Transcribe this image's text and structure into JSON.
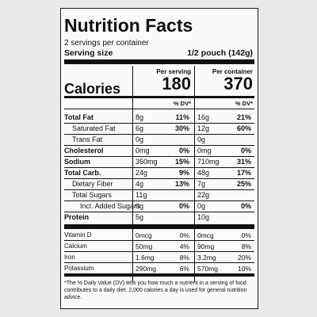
{
  "title": "Nutrition Facts",
  "servings": "2 servings per container",
  "serving_size": {
    "label": "Serving size",
    "value": "1/2 pouch (142g)"
  },
  "columns": [
    "Per serving",
    "Per container"
  ],
  "calories": {
    "label": "Calories",
    "values": [
      "180",
      "370"
    ]
  },
  "dv_header": [
    "% DV*",
    "% DV*"
  ],
  "rows": [
    {
      "name": "Total Fat",
      "bold": true,
      "indent": 0,
      "values": [
        "8g",
        "11%",
        "16g",
        "21%"
      ]
    },
    {
      "name": "Saturated Fat",
      "bold": false,
      "indent": 1,
      "values": [
        "6g",
        "30%",
        "12g",
        "60%"
      ]
    },
    {
      "name": "Trans Fat",
      "bold": false,
      "indent": 1,
      "values": [
        "0g",
        null,
        "0g",
        null
      ]
    },
    {
      "name": "Cholesterol",
      "bold": true,
      "indent": 0,
      "values": [
        "0mg",
        "0%",
        "0mg",
        "0%"
      ]
    },
    {
      "name": "Sodium",
      "bold": true,
      "indent": 0,
      "values": [
        "350mg",
        "15%",
        "710mg",
        "31%"
      ]
    },
    {
      "name": "Total Carb.",
      "bold": true,
      "indent": 0,
      "values": [
        "24g",
        "9%",
        "48g",
        "17%"
      ]
    },
    {
      "name": "Dietary Fiber",
      "bold": false,
      "indent": 1,
      "values": [
        "4g",
        "13%",
        "7g",
        "25%"
      ]
    },
    {
      "name": "Total Sugars",
      "bold": false,
      "indent": 1,
      "values": [
        "11g",
        null,
        "22g",
        null
      ]
    },
    {
      "name": "Incl. Added Sugars",
      "bold": false,
      "indent": 2,
      "values": [
        "0g",
        "0%",
        "0g",
        "0%"
      ]
    },
    {
      "name": "Protein",
      "bold": true,
      "indent": 0,
      "values": [
        "5g",
        null,
        "10g",
        null
      ]
    }
  ],
  "vitamins": [
    {
      "name": "Vitamin D",
      "values": [
        "0mcg",
        "0%",
        "0mcg",
        "0%"
      ]
    },
    {
      "name": "Calcium",
      "values": [
        "50mg",
        "4%",
        "90mg",
        "8%"
      ]
    },
    {
      "name": "Iron",
      "values": [
        "1.6mg",
        "8%",
        "3.2mg",
        "20%"
      ]
    },
    {
      "name": "Potassium",
      "values": [
        "290mg",
        "6%",
        "570mg",
        "10%"
      ]
    }
  ],
  "footnote": "*The % Daily Value (DV) tells you how much a nutrient in a serving of food contributes to a daily diet. 2,000 calories a day is used for general nutrition advice."
}
